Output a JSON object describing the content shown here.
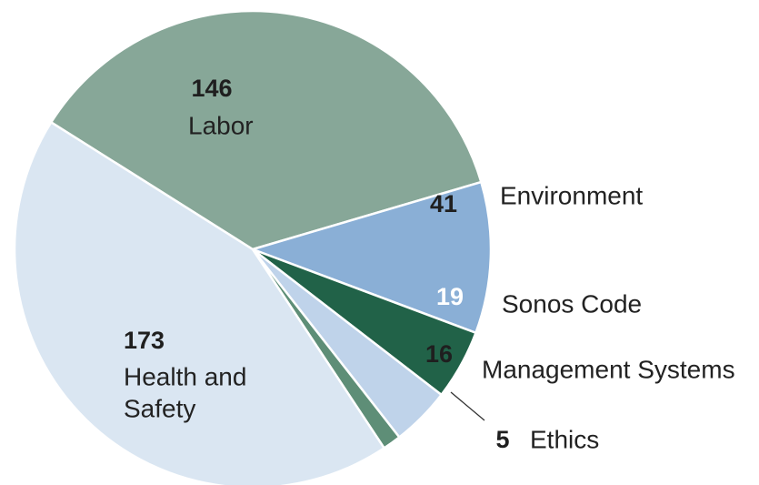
{
  "chart_data": {
    "type": "pie",
    "title": "",
    "slices": [
      {
        "label": "Labor",
        "value": 146,
        "color": "#87a798",
        "value_color": "#1f1f1f"
      },
      {
        "label": "Environment",
        "value": 41,
        "color": "#8aafd6",
        "value_color": "#1f1f1f"
      },
      {
        "label": "Sonos Code",
        "value": 19,
        "color": "#216248",
        "value_color": "#ffffff"
      },
      {
        "label": "Management Systems",
        "value": 16,
        "color": "#bfd3ea",
        "value_color": "#1f1f1f"
      },
      {
        "label": "Ethics",
        "value": 5,
        "color": "#5e8e77",
        "value_color": "#1f1f1f"
      },
      {
        "label": "Health and Safety",
        "value": 173,
        "color": "#dae6f2",
        "value_color": "#1f1f1f"
      }
    ],
    "legend": "none",
    "label_style": "value and category name beside or inside each slice"
  }
}
